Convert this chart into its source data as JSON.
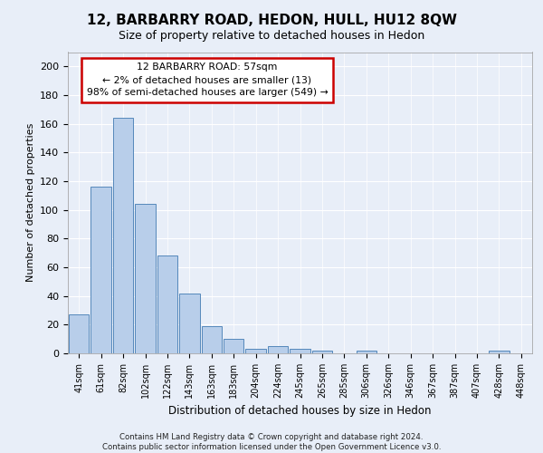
{
  "title": "12, BARBARRY ROAD, HEDON, HULL, HU12 8QW",
  "subtitle": "Size of property relative to detached houses in Hedon",
  "xlabel": "Distribution of detached houses by size in Hedon",
  "ylabel": "Number of detached properties",
  "categories": [
    "41sqm",
    "61sqm",
    "82sqm",
    "102sqm",
    "122sqm",
    "143sqm",
    "163sqm",
    "183sqm",
    "204sqm",
    "224sqm",
    "245sqm",
    "265sqm",
    "285sqm",
    "306sqm",
    "326sqm",
    "346sqm",
    "367sqm",
    "387sqm",
    "407sqm",
    "428sqm",
    "448sqm"
  ],
  "values": [
    27,
    116,
    164,
    104,
    68,
    42,
    19,
    10,
    3,
    5,
    3,
    2,
    0,
    2,
    0,
    0,
    0,
    0,
    0,
    2,
    0
  ],
  "bar_color": "#b8ceea",
  "bar_edge_color": "#5588bb",
  "annotation_text": "12 BARBARRY ROAD: 57sqm\n← 2% of detached houses are smaller (13)\n98% of semi-detached houses are larger (549) →",
  "annotation_box_color": "#ffffff",
  "annotation_box_edge_color": "#cc0000",
  "ylim": [
    0,
    210
  ],
  "yticks": [
    0,
    20,
    40,
    60,
    80,
    100,
    120,
    140,
    160,
    180,
    200
  ],
  "footer": "Contains HM Land Registry data © Crown copyright and database right 2024.\nContains public sector information licensed under the Open Government Licence v3.0.",
  "bg_color": "#e8eef8",
  "plot_bg_color": "#e8eef8",
  "grid_color": "#ffffff",
  "title_fontsize": 11,
  "subtitle_fontsize": 9
}
